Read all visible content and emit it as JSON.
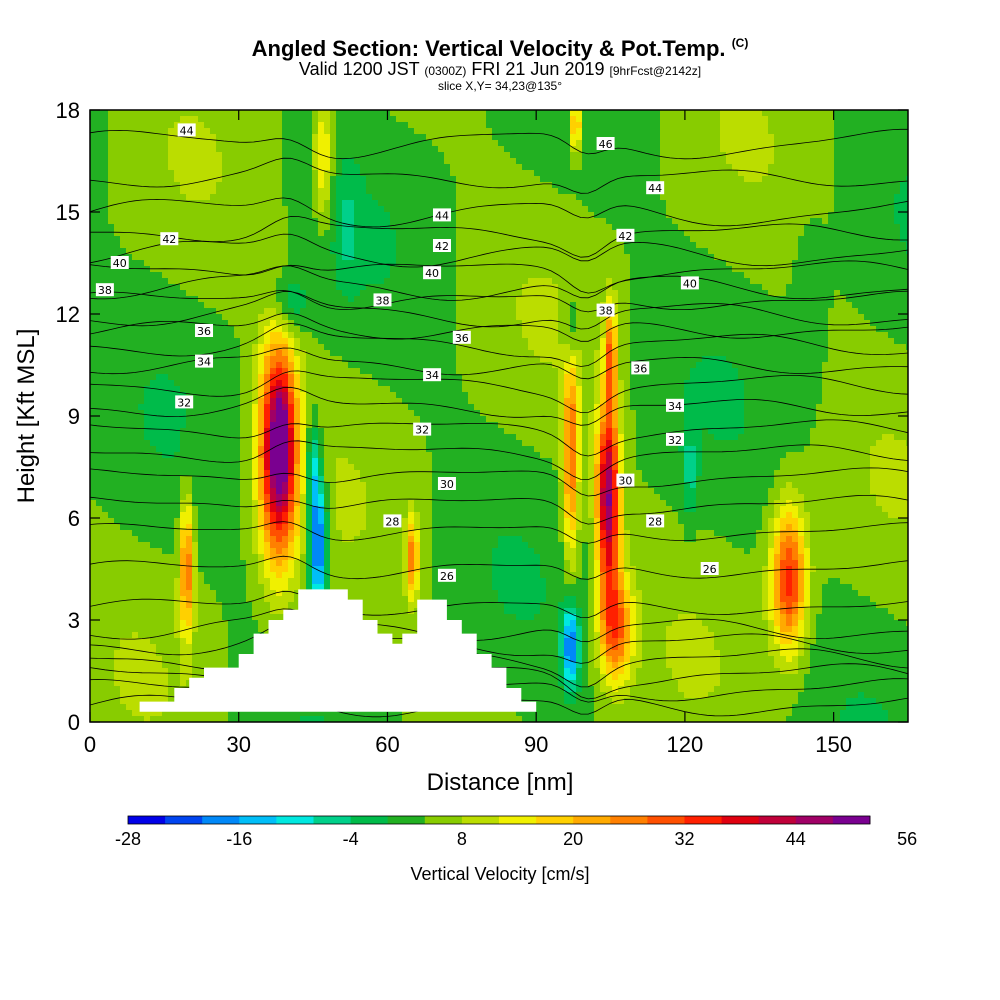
{
  "header": {
    "title": "Angled Section: Vertical Velocity & Pot.Temp.",
    "title_mark": "(C)",
    "valid_main": "Valid 1200 JST",
    "valid_utc": "(0300Z)",
    "valid_date": "FRI 21 Jun 2019",
    "fcst": "[9hrFcst@2142z]",
    "slice": "slice X,Y= 34,23@135°"
  },
  "chart_data": {
    "type": "heatmap",
    "title": "Angled Section: Vertical Velocity & Pot.Temp.",
    "xlabel": "Distance [nm]",
    "ylabel": "Height [Kft MSL]",
    "xlim": [
      0,
      165
    ],
    "ylim": [
      0,
      18
    ],
    "x_ticks": [
      0,
      30,
      60,
      90,
      120,
      150
    ],
    "y_ticks": [
      0,
      3,
      6,
      9,
      12,
      15,
      18
    ],
    "colorbar": {
      "label": "Vertical Velocity [cm/s]",
      "tick_labels": [
        "-28",
        "-16",
        "-4",
        "8",
        "20",
        "32",
        "44",
        "56"
      ],
      "min": -28,
      "step": 4,
      "colors": [
        "#0000e8",
        "#0044f0",
        "#0088f8",
        "#00bef8",
        "#00e8e0",
        "#00d08a",
        "#00bb4a",
        "#22b022",
        "#88cc00",
        "#bbdd00",
        "#f0f000",
        "#ffd000",
        "#ffaa00",
        "#ff8000",
        "#ff5000",
        "#ff2000",
        "#e00010",
        "#c0003a",
        "#a00066",
        "#7a0090"
      ]
    },
    "terrain_profile": [
      [
        10,
        0.6
      ],
      [
        17,
        0.6
      ],
      [
        17,
        1.0
      ],
      [
        20,
        1.0
      ],
      [
        20,
        1.3
      ],
      [
        23,
        1.3
      ],
      [
        23,
        1.6
      ],
      [
        30,
        1.6
      ],
      [
        30,
        2.0
      ],
      [
        33,
        2.0
      ],
      [
        33,
        2.6
      ],
      [
        36,
        2.6
      ],
      [
        36,
        3.0
      ],
      [
        39,
        3.0
      ],
      [
        39,
        3.3
      ],
      [
        42,
        3.3
      ],
      [
        42,
        3.9
      ],
      [
        52,
        3.9
      ],
      [
        52,
        3.6
      ],
      [
        55,
        3.6
      ],
      [
        55,
        3.0
      ],
      [
        58,
        3.0
      ],
      [
        58,
        2.6
      ],
      [
        61,
        2.6
      ],
      [
        61,
        2.3
      ],
      [
        63,
        2.3
      ],
      [
        63,
        2.6
      ],
      [
        66,
        2.6
      ],
      [
        66,
        3.6
      ],
      [
        72,
        3.6
      ],
      [
        72,
        3.0
      ],
      [
        75,
        3.0
      ],
      [
        75,
        2.6
      ],
      [
        78,
        2.6
      ],
      [
        78,
        2.0
      ],
      [
        81,
        2.0
      ],
      [
        81,
        1.6
      ],
      [
        84,
        1.6
      ],
      [
        84,
        1.0
      ],
      [
        87,
        1.0
      ],
      [
        87,
        0.6
      ],
      [
        90,
        0.6
      ],
      [
        90,
        0.3
      ],
      [
        10,
        0.3
      ]
    ],
    "velocity_cells": [
      {
        "x": 38,
        "z": 8.0,
        "sx": 3.8,
        "sz": 3.2,
        "w": 46
      },
      {
        "x": 38.5,
        "z": 8.2,
        "sx": 1.4,
        "sz": 1.3,
        "w": 16
      },
      {
        "x": 46,
        "z": 5.2,
        "sx": 1.8,
        "sz": 1.9,
        "w": -28
      },
      {
        "x": 45,
        "z": 7.5,
        "sx": 1.5,
        "sz": 1.5,
        "w": -14
      },
      {
        "x": 19.5,
        "z": 4.6,
        "sx": 1.4,
        "sz": 2.0,
        "w": 24
      },
      {
        "x": 65,
        "z": 4.8,
        "sx": 1.3,
        "sz": 1.2,
        "w": 22
      },
      {
        "x": 97,
        "z": 7.8,
        "sx": 1.6,
        "sz": 3.1,
        "w": 24
      },
      {
        "x": 97,
        "z": 2.2,
        "sx": 1.7,
        "sz": 1.2,
        "w": -24
      },
      {
        "x": 97,
        "z": 11.6,
        "sx": 1.6,
        "sz": 1.2,
        "w": -10
      },
      {
        "x": 104.5,
        "z": 6.6,
        "sx": 2.3,
        "sz": 2.7,
        "w": 44
      },
      {
        "x": 106,
        "z": 2.8,
        "sx": 3.2,
        "sz": 1.6,
        "w": 26
      },
      {
        "x": 105,
        "z": 10.8,
        "sx": 1.2,
        "sz": 1.5,
        "w": 22
      },
      {
        "x": 141,
        "z": 4.2,
        "sx": 3.5,
        "sz": 2.1,
        "w": 30
      },
      {
        "x": 40,
        "z": 12.3,
        "sx": 3.6,
        "sz": 0.9,
        "w": -10
      },
      {
        "x": 47,
        "z": 16.6,
        "sx": 1.8,
        "sz": 1.9,
        "w": 14
      },
      {
        "x": 98,
        "z": 17.6,
        "sx": 1.3,
        "sz": 0.9,
        "w": 20
      },
      {
        "x": 121,
        "z": 7.3,
        "sx": 1.5,
        "sz": 1.5,
        "w": -8
      },
      {
        "x": 52,
        "z": 14.5,
        "sx": 2.4,
        "sz": 1.6,
        "w": -6
      },
      {
        "x": 145,
        "z": 12.2,
        "sx": 3.0,
        "sz": 2.6,
        "w": -4
      }
    ],
    "theta_contours": [
      {
        "v": 26,
        "h": 3.4
      },
      {
        "v": 28,
        "h": 5.6
      },
      {
        "v": 30,
        "h": 7.2
      },
      {
        "v": 32,
        "h": 8.6
      },
      {
        "v": 34,
        "h": 9.9
      },
      {
        "v": 36,
        "h": 11.1
      },
      {
        "v": 38,
        "h": 12.0
      },
      {
        "v": 40,
        "h": 12.8
      },
      {
        "v": 42,
        "h": 13.8
      },
      {
        "v": 44,
        "h": 15.0
      },
      {
        "v": 46,
        "h": 17.0
      }
    ],
    "theta_labels": [
      {
        "text": "44",
        "x": 19.5,
        "z": 17.4
      },
      {
        "text": "46",
        "x": 104,
        "z": 17.0
      },
      {
        "text": "44",
        "x": 114,
        "z": 15.7
      },
      {
        "text": "44",
        "x": 71,
        "z": 14.9
      },
      {
        "text": "42",
        "x": 16,
        "z": 14.2
      },
      {
        "text": "42",
        "x": 71,
        "z": 14.0
      },
      {
        "text": "42",
        "x": 108,
        "z": 14.3
      },
      {
        "text": "40",
        "x": 6,
        "z": 13.5
      },
      {
        "text": "40",
        "x": 69,
        "z": 13.2
      },
      {
        "text": "40",
        "x": 121,
        "z": 12.9
      },
      {
        "text": "38",
        "x": 3,
        "z": 12.7
      },
      {
        "text": "38",
        "x": 59,
        "z": 12.4
      },
      {
        "text": "38",
        "x": 104,
        "z": 12.1
      },
      {
        "text": "36",
        "x": 23,
        "z": 11.5
      },
      {
        "text": "36",
        "x": 75,
        "z": 11.3
      },
      {
        "text": "36",
        "x": 111,
        "z": 10.4
      },
      {
        "text": "34",
        "x": 23,
        "z": 10.6
      },
      {
        "text": "34",
        "x": 69,
        "z": 10.2
      },
      {
        "text": "34",
        "x": 118,
        "z": 9.3
      },
      {
        "text": "32",
        "x": 19,
        "z": 9.4
      },
      {
        "text": "32",
        "x": 67,
        "z": 8.6
      },
      {
        "text": "32",
        "x": 118,
        "z": 8.3
      },
      {
        "text": "30",
        "x": 72,
        "z": 7.0
      },
      {
        "text": "30",
        "x": 108,
        "z": 7.1
      },
      {
        "text": "28",
        "x": 61,
        "z": 5.9
      },
      {
        "text": "28",
        "x": 114,
        "z": 5.9
      },
      {
        "text": "26",
        "x": 72,
        "z": 4.3
      },
      {
        "text": "26",
        "x": 125,
        "z": 4.5
      }
    ]
  }
}
